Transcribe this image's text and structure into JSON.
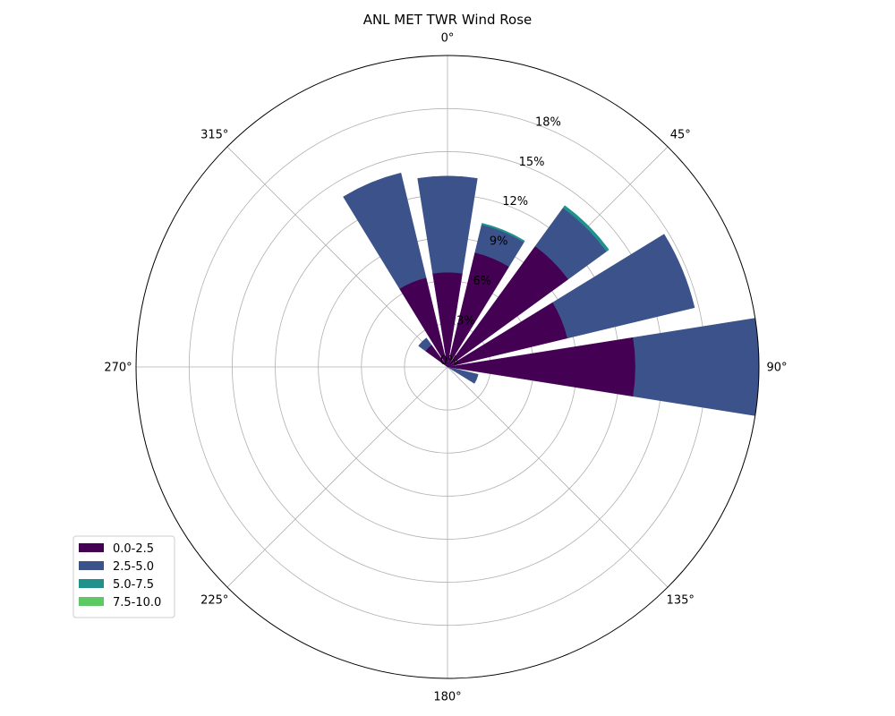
{
  "chart_data": {
    "type": "wind-rose",
    "title": "ANL MET TWR Wind Rose",
    "angle_unit": "degrees",
    "angular_direction": "clockwise",
    "zero_location": "top",
    "angular_ticks": [
      0,
      45,
      90,
      135,
      180,
      225,
      270,
      315
    ],
    "angular_tick_labels": [
      "0°",
      "45°",
      "90°",
      "135°",
      "180°",
      "225°",
      "270°",
      "315°"
    ],
    "radial_ticks": [
      0,
      3,
      6,
      9,
      12,
      15,
      18
    ],
    "radial_tick_labels": [
      "0%",
      "3%",
      "6%",
      "9%",
      "12%",
      "15%",
      "18%"
    ],
    "radial_range": [
      0,
      21.7
    ],
    "radial_label_angle": 22.5,
    "grid": true,
    "legend_placement": "lower-left",
    "sector_width_deg": 18,
    "categories": [
      0,
      22.5,
      45,
      67.5,
      90,
      112.5,
      135,
      157.5,
      180,
      202.5,
      225,
      247.5,
      270,
      292.5,
      315,
      337.5
    ],
    "series": [
      {
        "name": "0.0-2.5",
        "color": "#440154",
        "values": [
          6.6,
          8.2,
          10.4,
          8.6,
          13.1,
          0.0,
          0.0,
          0.0,
          0.0,
          0.0,
          0.0,
          0.0,
          0.0,
          0.0,
          1.9,
          6.4
        ]
      },
      {
        "name": "2.5-5.0",
        "color": "#3b528b",
        "values": [
          6.7,
          2.0,
          3.3,
          9.1,
          8.6,
          2.2,
          0.0,
          0.0,
          0.0,
          0.0,
          0.0,
          0.0,
          0.0,
          0.0,
          0.6,
          7.5
        ]
      },
      {
        "name": "5.0-7.5",
        "color": "#21918c",
        "values": [
          0.0,
          0.1,
          0.2,
          0.0,
          0.0,
          0.0,
          0.0,
          0.0,
          0.0,
          0.0,
          0.0,
          0.0,
          0.0,
          0.0,
          0.0,
          0.0
        ]
      },
      {
        "name": "7.5-10.0",
        "color": "#5ec962",
        "values": [
          0,
          0,
          0,
          0,
          0,
          0,
          0,
          0,
          0,
          0,
          0,
          0,
          0,
          0,
          0,
          0
        ]
      }
    ]
  }
}
